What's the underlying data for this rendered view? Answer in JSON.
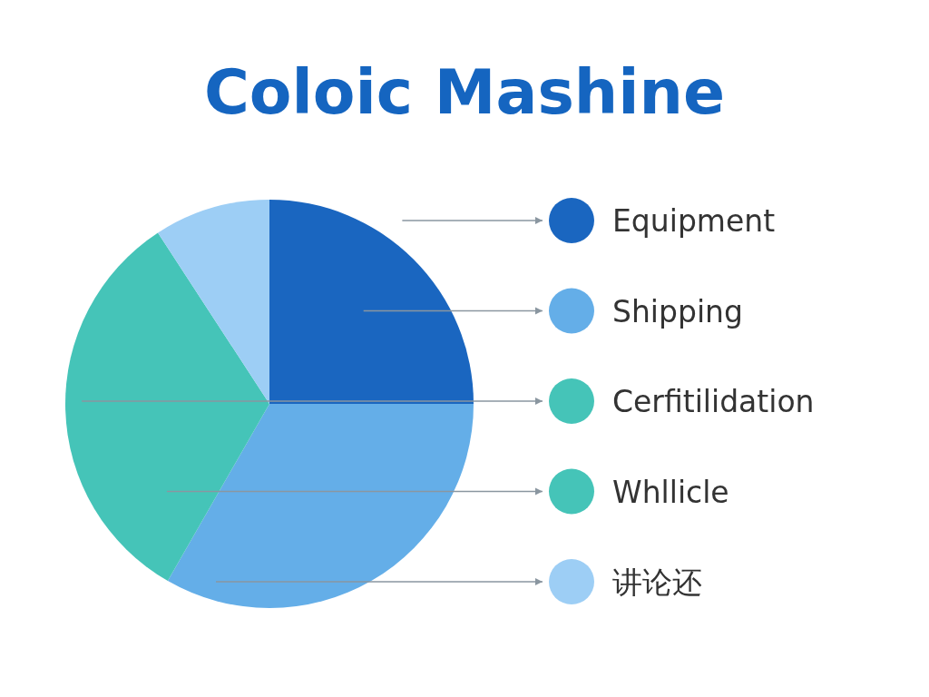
{
  "chart_data": {
    "type": "pie",
    "title": "Coloic Mashine",
    "categories": [
      "Equipment",
      "Shipping",
      "Cerfitilidation",
      "Whllicle",
      "讲论还"
    ],
    "values": [
      25,
      33.3,
      32.5,
      0,
      9.2
    ],
    "colors": [
      "#1a66c0",
      "#64aee8",
      "#45c4b8",
      "#45c4b8",
      "#9dcef5"
    ],
    "legend": "right"
  }
}
